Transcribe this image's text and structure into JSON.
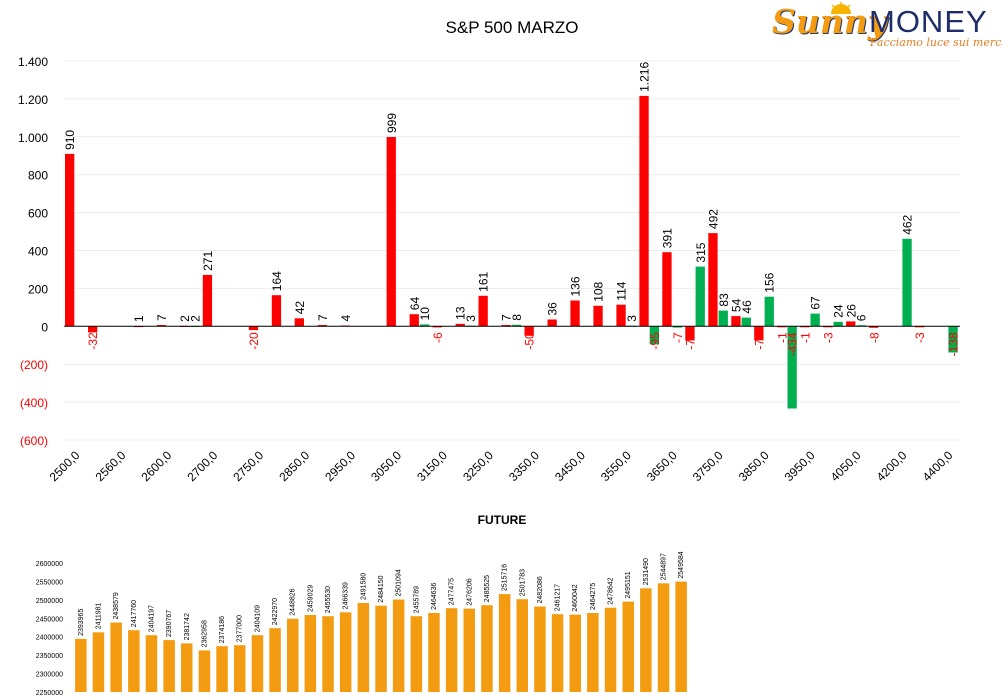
{
  "logo": {
    "word_sunny": "Sunny",
    "word_money": "MONEY",
    "tagline": "Facciamo luce sui mercati"
  },
  "colors": {
    "positive": "#ff0000",
    "negative": "#00b050",
    "future_bars": "#f39c12",
    "axis": "#000000"
  },
  "chart_data": [
    {
      "type": "bar",
      "title": "S&P 500 MARZO",
      "xlabel": "",
      "ylabel": "",
      "ylim": [
        -600,
        1400
      ],
      "grid": true,
      "legend": "none",
      "yticks": [
        {
          "value": 1400,
          "label": "1.400"
        },
        {
          "value": 1200,
          "label": "1.200"
        },
        {
          "value": 1000,
          "label": "1.000"
        },
        {
          "value": 800,
          "label": "800"
        },
        {
          "value": 600,
          "label": "600"
        },
        {
          "value": 400,
          "label": "400"
        },
        {
          "value": 200,
          "label": "200"
        },
        {
          "value": 0,
          "label": "0"
        },
        {
          "value": -200,
          "label": "(200)"
        },
        {
          "value": -400,
          "label": "(400)"
        },
        {
          "value": -600,
          "label": "(600)"
        }
      ],
      "xticks": [
        {
          "index": 0,
          "label": "2500,0"
        },
        {
          "index": 2,
          "label": "2560,0"
        },
        {
          "index": 4,
          "label": "2600,0"
        },
        {
          "index": 6,
          "label": "2700,0"
        },
        {
          "index": 8,
          "label": "2750,0"
        },
        {
          "index": 10,
          "label": "2850,0"
        },
        {
          "index": 12,
          "label": "2950,0"
        },
        {
          "index": 14,
          "label": "3050,0"
        },
        {
          "index": 16,
          "label": "3150,0"
        },
        {
          "index": 18,
          "label": "3250,0"
        },
        {
          "index": 20,
          "label": "3350,0"
        },
        {
          "index": 22,
          "label": "3450,0"
        },
        {
          "index": 24,
          "label": "3550,0"
        },
        {
          "index": 26,
          "label": "3650,0"
        },
        {
          "index": 28,
          "label": "3750,0"
        },
        {
          "index": 30,
          "label": "3850,0"
        },
        {
          "index": 32,
          "label": "3950,0"
        },
        {
          "index": 34,
          "label": "4050,0"
        },
        {
          "index": 36,
          "label": "4200,0"
        },
        {
          "index": 38,
          "label": "4400,0"
        }
      ],
      "bars": [
        {
          "slot": 0,
          "pos": 0,
          "value": 910,
          "series": "red",
          "label": "910"
        },
        {
          "slot": 1,
          "pos": 0,
          "value": -32,
          "series": "red",
          "label": "-32"
        },
        {
          "slot": 3,
          "pos": 0,
          "value": 1,
          "series": "red",
          "label": "1"
        },
        {
          "slot": 4,
          "pos": 0,
          "value": 7,
          "series": "red",
          "label": "7"
        },
        {
          "slot": 5,
          "pos": 0,
          "value": 2,
          "series": "red",
          "label": "2"
        },
        {
          "slot": 5,
          "pos": 1,
          "value": 2,
          "series": "green",
          "label": "2"
        },
        {
          "slot": 6,
          "pos": 0,
          "value": 271,
          "series": "red",
          "label": "271"
        },
        {
          "slot": 8,
          "pos": 0,
          "value": -20,
          "series": "red",
          "label": "-20"
        },
        {
          "slot": 9,
          "pos": 0,
          "value": 164,
          "series": "red",
          "label": "164"
        },
        {
          "slot": 10,
          "pos": 0,
          "value": 42,
          "series": "red",
          "label": "42"
        },
        {
          "slot": 11,
          "pos": 0,
          "value": 7,
          "series": "red",
          "label": "7"
        },
        {
          "slot": 12,
          "pos": 0,
          "value": 4,
          "series": "red",
          "label": "4"
        },
        {
          "slot": 14,
          "pos": 0,
          "value": 999,
          "series": "red",
          "label": "999"
        },
        {
          "slot": 15,
          "pos": 0,
          "value": 64,
          "series": "red",
          "label": "64"
        },
        {
          "slot": 15,
          "pos": 1,
          "value": 10,
          "series": "green",
          "label": "10"
        },
        {
          "slot": 16,
          "pos": 0,
          "value": -6,
          "series": "red",
          "label": "-6"
        },
        {
          "slot": 17,
          "pos": 0,
          "value": 13,
          "series": "red",
          "label": "13"
        },
        {
          "slot": 17,
          "pos": 1,
          "value": 3,
          "series": "green",
          "label": "3"
        },
        {
          "slot": 18,
          "pos": 0,
          "value": 161,
          "series": "red",
          "label": "161"
        },
        {
          "slot": 19,
          "pos": 0,
          "value": 7,
          "series": "red",
          "label": "7"
        },
        {
          "slot": 19,
          "pos": 1,
          "value": 8,
          "series": "green",
          "label": "8"
        },
        {
          "slot": 20,
          "pos": 0,
          "value": -50,
          "series": "red",
          "label": "-50"
        },
        {
          "slot": 21,
          "pos": 0,
          "value": 36,
          "series": "red",
          "label": "36"
        },
        {
          "slot": 22,
          "pos": 0,
          "value": 136,
          "series": "red",
          "label": "136"
        },
        {
          "slot": 23,
          "pos": 0,
          "value": 108,
          "series": "red",
          "label": "108"
        },
        {
          "slot": 24,
          "pos": 0,
          "value": 114,
          "series": "red",
          "label": "114"
        },
        {
          "slot": 24,
          "pos": 1,
          "value": 3,
          "series": "green",
          "label": "3"
        },
        {
          "slot": 25,
          "pos": 0,
          "value": 1216,
          "series": "red",
          "label": "1.216"
        },
        {
          "slot": 25,
          "pos": 1,
          "value": -95,
          "series": "green",
          "label": "-95"
        },
        {
          "slot": 26,
          "pos": 0,
          "value": 391,
          "series": "red",
          "label": "391"
        },
        {
          "slot": 26,
          "pos": 1,
          "value": -7,
          "series": "green",
          "label": "-7"
        },
        {
          "slot": 27,
          "pos": 0,
          "value": -75,
          "series": "red",
          "label": "-75"
        },
        {
          "slot": 27,
          "pos": 1,
          "value": 315,
          "series": "green",
          "label": "315"
        },
        {
          "slot": 28,
          "pos": 0,
          "value": 492,
          "series": "red",
          "label": "492"
        },
        {
          "slot": 28,
          "pos": 1,
          "value": 83,
          "series": "green",
          "label": "83"
        },
        {
          "slot": 29,
          "pos": 0,
          "value": 54,
          "series": "red",
          "label": "54"
        },
        {
          "slot": 29,
          "pos": 1,
          "value": 46,
          "series": "green",
          "label": "46"
        },
        {
          "slot": 30,
          "pos": 0,
          "value": -74,
          "series": "red",
          "label": "-74"
        },
        {
          "slot": 30,
          "pos": 1,
          "value": 156,
          "series": "green",
          "label": "156"
        },
        {
          "slot": 31,
          "pos": 0,
          "value": -1,
          "series": "red",
          "label": "-1"
        },
        {
          "slot": 31,
          "pos": 1,
          "value": -434,
          "series": "green",
          "label": "-434"
        },
        {
          "slot": 32,
          "pos": 0,
          "value": -1,
          "series": "red",
          "label": "-1"
        },
        {
          "slot": 32,
          "pos": 1,
          "value": 67,
          "series": "green",
          "label": "67"
        },
        {
          "slot": 33,
          "pos": 0,
          "value": -3,
          "series": "red",
          "label": "-3"
        },
        {
          "slot": 33,
          "pos": 1,
          "value": 24,
          "series": "green",
          "label": "24"
        },
        {
          "slot": 34,
          "pos": 0,
          "value": 26,
          "series": "red",
          "label": "26"
        },
        {
          "slot": 34,
          "pos": 1,
          "value": 6,
          "series": "green",
          "label": "6"
        },
        {
          "slot": 35,
          "pos": 0,
          "value": -8,
          "series": "red",
          "label": "-8"
        },
        {
          "slot": 36,
          "pos": 1,
          "value": 462,
          "series": "green",
          "label": "462"
        },
        {
          "slot": 37,
          "pos": 0,
          "value": -3,
          "series": "red",
          "label": "-3"
        },
        {
          "slot": 38,
          "pos": 1,
          "value": -138,
          "series": "green",
          "label": "-138"
        }
      ]
    },
    {
      "type": "bar",
      "title": "FUTURE",
      "xlabel": "",
      "ylabel": "",
      "ylim": [
        2250000,
        2600000
      ],
      "grid": false,
      "legend": "none",
      "yticks": [
        {
          "value": 2600000,
          "label": "2600000"
        },
        {
          "value": 2550000,
          "label": "2550000"
        },
        {
          "value": 2500000,
          "label": "2500000"
        },
        {
          "value": 2450000,
          "label": "2450000"
        },
        {
          "value": 2400000,
          "label": "2400000"
        },
        {
          "value": 2350000,
          "label": "2350000"
        },
        {
          "value": 2300000,
          "label": "2300000"
        },
        {
          "value": 2250000,
          "label": "2250000"
        }
      ],
      "values": [
        2393965,
        2411981,
        2438579,
        2417760,
        2404197,
        2390767,
        2381742,
        2362958,
        2374186,
        2377000,
        2404109,
        2422970,
        2448826,
        2459029,
        2455530,
        2466339,
        2491580,
        2484150,
        2501094,
        2455789,
        2464636,
        2477475,
        2476206,
        2485525,
        2515716,
        2501783,
        2482086,
        2461217,
        2460042,
        2464275,
        2478642,
        2495151,
        2531490,
        2544897,
        2549584
      ],
      "labels": [
        "2393965",
        "2411981",
        "2438579",
        "2417760",
        "2404197",
        "2390767",
        "2381742",
        "2362958",
        "2374186",
        "2377000",
        "2404109",
        "2422970",
        "2448826",
        "2459029",
        "2455530",
        "2466339",
        "2491580",
        "2484150",
        "2501094",
        "2455789",
        "2464636",
        "2477475",
        "2476206",
        "2485525",
        "2515716",
        "2501783",
        "2482086",
        "2461217",
        "2460042",
        "2464275",
        "2478642",
        "2495151",
        "2531490",
        "2544897",
        "2549584"
      ]
    }
  ]
}
